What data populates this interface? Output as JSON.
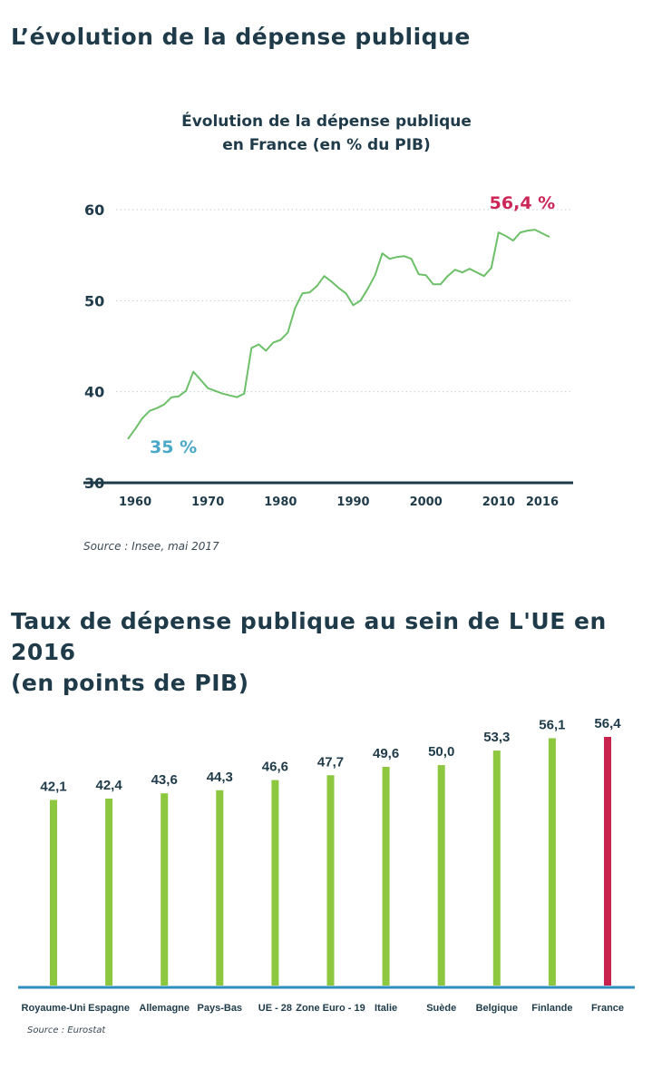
{
  "page": {
    "title1": "L’évolution de la dépense publique",
    "title2_line1": "Taux de dépense publique au sein de L'UE en 2016",
    "title2_line2": "(en points de PIB)"
  },
  "chart_data": [
    {
      "type": "line",
      "title_line1": "Évolution de la dépense publique",
      "title_line2": "en France (en % du PIB)",
      "xlabel": "",
      "ylabel": "",
      "xlim": [
        1958,
        2020
      ],
      "ylim": [
        30,
        60
      ],
      "y_ticks": [
        60,
        50,
        40,
        30
      ],
      "x_ticks": [
        1960,
        1970,
        1980,
        1990,
        2000,
        2010,
        2016
      ],
      "x_tick_labels": [
        "1960",
        "1970",
        "1980",
        "1990",
        "2000",
        "2010",
        "2016"
      ],
      "grid": true,
      "color": "#6dc069",
      "series": [
        {
          "name": "Dépense publique (% du PIB)",
          "x": [
            1959,
            1960,
            1961,
            1962,
            1963,
            1964,
            1965,
            1966,
            1967,
            1968,
            1969,
            1970,
            1971,
            1972,
            1973,
            1974,
            1975,
            1976,
            1977,
            1978,
            1979,
            1980,
            1981,
            1982,
            1983,
            1984,
            1985,
            1986,
            1987,
            1988,
            1989,
            1990,
            1991,
            1992,
            1993,
            1994,
            1995,
            1996,
            1997,
            1998,
            1999,
            2000,
            2001,
            2002,
            2003,
            2004,
            2005,
            2006,
            2007,
            2008,
            2009,
            2010,
            2011,
            2012,
            2013,
            2014,
            2015,
            2016,
            2017
          ],
          "values": [
            34.8,
            35.9,
            37.1,
            37.9,
            38.2,
            38.6,
            39.4,
            39.5,
            40.1,
            42.2,
            41.3,
            40.4,
            40.1,
            39.8,
            39.6,
            39.4,
            39.8,
            44.8,
            45.2,
            44.5,
            45.4,
            45.7,
            46.5,
            49.2,
            50.8,
            50.9,
            51.6,
            52.7,
            52.1,
            51.4,
            50.8,
            49.5,
            50.0,
            51.3,
            52.8,
            55.2,
            54.6,
            54.8,
            54.9,
            54.6,
            52.9,
            52.8,
            51.8,
            51.8,
            52.7,
            53.4,
            53.1,
            53.5,
            53.1,
            52.7,
            53.6,
            57.5,
            57.1,
            56.6,
            57.5,
            57.7,
            57.8,
            57.4,
            57.0
          ]
        }
      ],
      "annotations": {
        "start": "35 %",
        "end": "56,4 %"
      },
      "source": "Source : Insee, mai 2017"
    },
    {
      "type": "bar",
      "title": "",
      "categories": [
        "Royaume-Uni",
        "Espagne",
        "Allemagne",
        "Pays-Bas",
        "UE - 28",
        "Zone Euro - 19",
        "Italie",
        "Suède",
        "Belgique",
        "Finlande",
        "France"
      ],
      "values": [
        42.1,
        42.4,
        43.6,
        44.3,
        46.6,
        47.7,
        49.6,
        50.0,
        53.3,
        56.1,
        56.4
      ],
      "value_labels": [
        "42,1",
        "42,4",
        "43,6",
        "44,3",
        "46,6",
        "47,7",
        "49,6",
        "50,0",
        "53,3",
        "56,1",
        "56,4"
      ],
      "highlight_index": 10,
      "colors": {
        "default": "#8dc63f",
        "highlight": "#c8234f",
        "axis": "#2e8fbf"
      },
      "xlabel": "",
      "ylabel": "",
      "ylim": [
        0,
        56.4
      ],
      "source": "Source : Eurostat"
    }
  ]
}
